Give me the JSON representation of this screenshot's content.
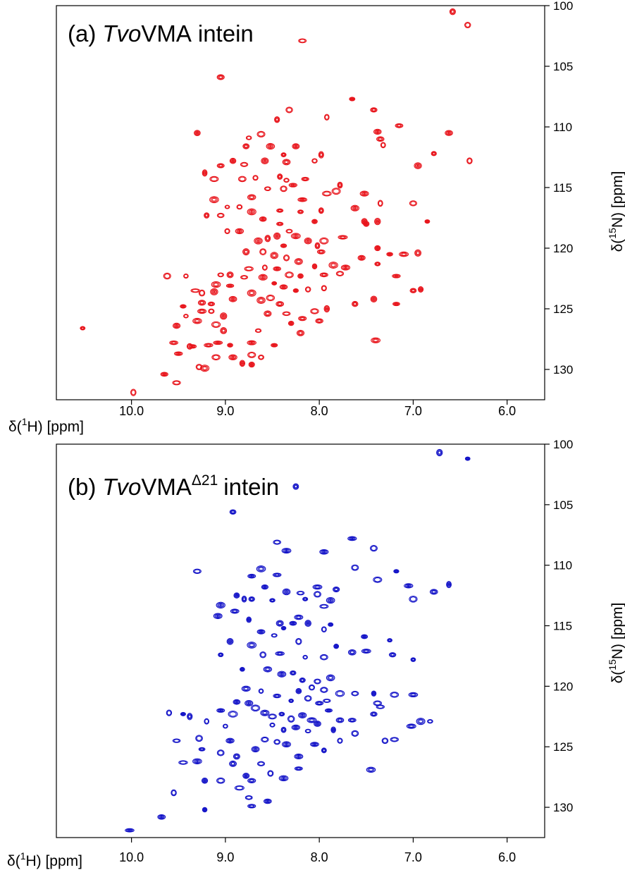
{
  "panels": [
    {
      "panel_letter": "(a)",
      "title_italic": "Tvo",
      "title_main": "VMA",
      "title_superscript": "",
      "title_suffix": "intein",
      "color": "#e8141b"
    },
    {
      "panel_letter": "(b)",
      "title_italic": "Tvo",
      "title_main": "VMA",
      "title_superscript": "Δ21",
      "title_suffix": "intein",
      "color": "#1414c8"
    }
  ],
  "x_axis_label": {
    "prefix": "δ(",
    "sup": "1",
    "rest": "H) [ppm]"
  },
  "y_axis_label": {
    "prefix": "δ(",
    "sup": "15",
    "rest": "N) [ppm]"
  },
  "chart_data": [
    {
      "type": "scatter",
      "subtype": "2D NMR HSQC contour spectrum",
      "x_axis": {
        "xlim": [
          10.8,
          5.6
        ],
        "reversed": true,
        "ticks": [
          "10.0",
          "9.0",
          "8.0",
          "7.0",
          "6.0"
        ],
        "tick_values": [
          10.0,
          9.0,
          8.0,
          7.0,
          6.0
        ]
      },
      "y_axis": {
        "ylim": [
          100,
          132.5
        ],
        "reversed": true,
        "position": "right",
        "ticks": [
          "100",
          "105",
          "110",
          "115",
          "120",
          "125",
          "130"
        ],
        "tick_values": [
          100,
          105,
          110,
          115,
          120,
          125,
          130
        ]
      },
      "grid": false,
      "peaks": [
        [
          6.58,
          100.5
        ],
        [
          6.42,
          101.6
        ],
        [
          8.18,
          102.9
        ],
        [
          9.05,
          105.9
        ],
        [
          7.65,
          107.7
        ],
        [
          7.42,
          108.6
        ],
        [
          8.32,
          108.6
        ],
        [
          8.45,
          109.4
        ],
        [
          7.92,
          109.2
        ],
        [
          7.15,
          109.9
        ],
        [
          9.3,
          110.5
        ],
        [
          8.62,
          110.6
        ],
        [
          8.75,
          110.9
        ],
        [
          7.32,
          111.5
        ],
        [
          6.78,
          112.2
        ],
        [
          6.4,
          112.8
        ],
        [
          8.78,
          111.6
        ],
        [
          8.52,
          111.6
        ],
        [
          8.25,
          111.6
        ],
        [
          8.38,
          112.3
        ],
        [
          8.05,
          112.8
        ],
        [
          7.98,
          112.3
        ],
        [
          8.35,
          112.9
        ],
        [
          9.05,
          113.2
        ],
        [
          8.92,
          112.8
        ],
        [
          8.58,
          112.8
        ],
        [
          9.22,
          113.8
        ],
        [
          9.12,
          114.3
        ],
        [
          8.82,
          114.3
        ],
        [
          8.68,
          114.2
        ],
        [
          8.42,
          114.1
        ],
        [
          8.35,
          114.4
        ],
        [
          8.28,
          114.8
        ],
        [
          7.78,
          114.8
        ],
        [
          8.15,
          114.3
        ],
        [
          7.92,
          115.5
        ],
        [
          7.82,
          115.3
        ],
        [
          7.52,
          115.5
        ],
        [
          8.55,
          115.1
        ],
        [
          8.38,
          115.1
        ],
        [
          7.62,
          116.7
        ],
        [
          7.5,
          118.0
        ],
        [
          8.72,
          115.8
        ],
        [
          8.85,
          116.6
        ],
        [
          8.98,
          116.6
        ],
        [
          9.12,
          116.0
        ],
        [
          9.2,
          117.3
        ],
        [
          9.05,
          117.3
        ],
        [
          8.72,
          117.0
        ],
        [
          8.6,
          117.6
        ],
        [
          8.42,
          116.9
        ],
        [
          8.18,
          116.0
        ],
        [
          8.2,
          117.0
        ],
        [
          7.98,
          116.9
        ],
        [
          7.35,
          116.3
        ],
        [
          7.0,
          116.3
        ],
        [
          6.85,
          117.8
        ],
        [
          7.38,
          117.8
        ],
        [
          7.52,
          117.8
        ],
        [
          8.05,
          117.8
        ],
        [
          8.98,
          118.6
        ],
        [
          8.85,
          118.6
        ],
        [
          8.42,
          118.0
        ],
        [
          8.32,
          118.6
        ],
        [
          8.45,
          119.0
        ],
        [
          8.55,
          119.2
        ],
        [
          8.65,
          119.4
        ],
        [
          8.38,
          119.8
        ],
        [
          8.25,
          119.0
        ],
        [
          8.12,
          119.4
        ],
        [
          7.95,
          119.4
        ],
        [
          7.75,
          119.1
        ],
        [
          8.02,
          119.8
        ],
        [
          8.6,
          120.3
        ],
        [
          8.48,
          120.6
        ],
        [
          8.35,
          120.8
        ],
        [
          8.22,
          121.1
        ],
        [
          8.58,
          121.6
        ],
        [
          8.45,
          121.7
        ],
        [
          8.32,
          122.2
        ],
        [
          8.2,
          122.3
        ],
        [
          8.6,
          122.4
        ],
        [
          8.48,
          122.9
        ],
        [
          8.38,
          123.2
        ],
        [
          8.25,
          123.5
        ],
        [
          8.12,
          123.4
        ],
        [
          8.05,
          121.5
        ],
        [
          7.98,
          120.3
        ],
        [
          7.95,
          122.2
        ],
        [
          7.95,
          123.3
        ],
        [
          7.85,
          121.4
        ],
        [
          7.72,
          121.6
        ],
        [
          7.55,
          120.8
        ],
        [
          7.38,
          120.0
        ],
        [
          7.38,
          121.3
        ],
        [
          7.25,
          120.5
        ],
        [
          7.1,
          120.5
        ],
        [
          6.95,
          120.4
        ],
        [
          7.18,
          122.3
        ],
        [
          7.0,
          123.5
        ],
        [
          6.92,
          123.4
        ],
        [
          7.18,
          124.6
        ],
        [
          7.42,
          124.2
        ],
        [
          7.62,
          124.6
        ],
        [
          7.4,
          127.6
        ],
        [
          7.78,
          122.1
        ],
        [
          8.78,
          120.3
        ],
        [
          8.75,
          121.7
        ],
        [
          8.95,
          122.2
        ],
        [
          9.05,
          122.2
        ],
        [
          9.1,
          123.0
        ],
        [
          8.95,
          123.1
        ],
        [
          8.92,
          124.2
        ],
        [
          8.8,
          122.4
        ],
        [
          8.72,
          123.7
        ],
        [
          8.62,
          124.3
        ],
        [
          8.52,
          124.1
        ],
        [
          8.42,
          124.6
        ],
        [
          8.35,
          125.4
        ],
        [
          8.18,
          125.8
        ],
        [
          8.05,
          125.2
        ],
        [
          7.92,
          125.0
        ],
        [
          8.3,
          126.2
        ],
        [
          8.2,
          127.0
        ],
        [
          8.0,
          126.0
        ],
        [
          8.55,
          125.4
        ],
        [
          8.65,
          126.8
        ],
        [
          8.48,
          128.0
        ],
        [
          8.72,
          127.8
        ],
        [
          8.72,
          128.8
        ],
        [
          8.72,
          129.6
        ],
        [
          8.62,
          129.0
        ],
        [
          8.82,
          129.5
        ],
        [
          8.92,
          129.0
        ],
        [
          8.95,
          128.0
        ],
        [
          9.08,
          127.8
        ],
        [
          9.18,
          128.0
        ],
        [
          9.38,
          128.1
        ],
        [
          9.02,
          126.8
        ],
        [
          9.1,
          126.3
        ],
        [
          9.02,
          125.6
        ],
        [
          9.15,
          125.2
        ],
        [
          9.25,
          125.2
        ],
        [
          9.3,
          126.0
        ],
        [
          9.15,
          124.6
        ],
        [
          9.25,
          124.5
        ],
        [
          9.45,
          124.8
        ],
        [
          9.25,
          123.7
        ],
        [
          9.12,
          123.6
        ],
        [
          9.32,
          123.5
        ],
        [
          9.42,
          122.3
        ],
        [
          9.62,
          122.3
        ],
        [
          9.42,
          125.6
        ],
        [
          9.52,
          126.4
        ],
        [
          9.55,
          127.8
        ],
        [
          9.35,
          128.1
        ],
        [
          9.5,
          128.7
        ],
        [
          9.28,
          129.8
        ],
        [
          9.22,
          129.9
        ],
        [
          9.1,
          129.0
        ],
        [
          9.65,
          130.4
        ],
        [
          9.52,
          131.1
        ],
        [
          9.98,
          131.9
        ],
        [
          10.52,
          126.6
        ],
        [
          6.62,
          110.5
        ],
        [
          6.95,
          113.2
        ],
        [
          7.38,
          110.4
        ],
        [
          7.35,
          111.0
        ],
        [
          8.8,
          113.1
        ]
      ]
    },
    {
      "type": "scatter",
      "subtype": "2D NMR HSQC contour spectrum",
      "x_axis": {
        "xlim": [
          10.8,
          5.6
        ],
        "reversed": true,
        "ticks": [
          "10.0",
          "9.0",
          "8.0",
          "7.0",
          "6.0"
        ],
        "tick_values": [
          10.0,
          9.0,
          8.0,
          7.0,
          6.0
        ]
      },
      "y_axis": {
        "ylim": [
          100,
          132.5
        ],
        "reversed": true,
        "position": "right",
        "ticks": [
          "100",
          "105",
          "110",
          "115",
          "120",
          "125",
          "130"
        ],
        "tick_values": [
          100,
          105,
          110,
          115,
          120,
          125,
          130
        ]
      },
      "grid": false,
      "peaks": [
        [
          6.72,
          100.7
        ],
        [
          6.42,
          101.2
        ],
        [
          8.25,
          103.5
        ],
        [
          8.92,
          105.6
        ],
        [
          7.65,
          107.8
        ],
        [
          7.42,
          108.6
        ],
        [
          8.45,
          108.1
        ],
        [
          8.35,
          108.8
        ],
        [
          7.95,
          108.9
        ],
        [
          7.18,
          110.5
        ],
        [
          9.3,
          110.5
        ],
        [
          8.62,
          110.3
        ],
        [
          8.72,
          110.9
        ],
        [
          7.38,
          111.2
        ],
        [
          6.78,
          112.2
        ],
        [
          6.62,
          111.6
        ],
        [
          8.58,
          111.8
        ],
        [
          8.35,
          112.2
        ],
        [
          8.2,
          112.3
        ],
        [
          8.15,
          112.8
        ],
        [
          8.02,
          112.4
        ],
        [
          7.88,
          112.9
        ],
        [
          8.8,
          112.8
        ],
        [
          8.72,
          112.8
        ],
        [
          9.05,
          113.3
        ],
        [
          7.0,
          112.8
        ],
        [
          9.08,
          114.2
        ],
        [
          8.9,
          113.8
        ],
        [
          8.75,
          114.5
        ],
        [
          8.42,
          114.8
        ],
        [
          8.38,
          115.2
        ],
        [
          8.28,
          114.8
        ],
        [
          8.22,
          114.3
        ],
        [
          8.12,
          114.8
        ],
        [
          7.95,
          115.3
        ],
        [
          7.88,
          114.9
        ],
        [
          7.52,
          115.9
        ],
        [
          8.62,
          115.5
        ],
        [
          8.48,
          115.8
        ],
        [
          9.05,
          117.4
        ],
        [
          8.95,
          116.3
        ],
        [
          8.72,
          116.6
        ],
        [
          8.6,
          117.4
        ],
        [
          8.42,
          117.3
        ],
        [
          8.22,
          116.3
        ],
        [
          8.15,
          117.6
        ],
        [
          7.95,
          117.6
        ],
        [
          7.65,
          117.2
        ],
        [
          7.5,
          117.1
        ],
        [
          7.25,
          116.2
        ],
        [
          7.22,
          117.4
        ],
        [
          7.0,
          117.8
        ],
        [
          8.82,
          118.6
        ],
        [
          8.55,
          118.6
        ],
        [
          8.4,
          119.0
        ],
        [
          8.28,
          118.9
        ],
        [
          8.18,
          119.5
        ],
        [
          8.02,
          119.6
        ],
        [
          7.88,
          119.3
        ],
        [
          7.95,
          120.3
        ],
        [
          8.78,
          120.2
        ],
        [
          8.62,
          120.4
        ],
        [
          8.45,
          120.8
        ],
        [
          8.3,
          121.2
        ],
        [
          8.22,
          120.4
        ],
        [
          8.12,
          121.0
        ],
        [
          8.0,
          121.4
        ],
        [
          7.9,
          122.0
        ],
        [
          7.78,
          120.6
        ],
        [
          7.62,
          120.6
        ],
        [
          7.42,
          120.6
        ],
        [
          7.38,
          121.4
        ],
        [
          7.2,
          120.7
        ],
        [
          7.0,
          120.7
        ],
        [
          8.88,
          121.3
        ],
        [
          8.75,
          121.4
        ],
        [
          8.68,
          121.8
        ],
        [
          8.58,
          122.2
        ],
        [
          8.5,
          122.5
        ],
        [
          8.4,
          122.3
        ],
        [
          8.3,
          122.7
        ],
        [
          8.18,
          122.4
        ],
        [
          8.08,
          122.8
        ],
        [
          8.5,
          123.2
        ],
        [
          8.38,
          123.6
        ],
        [
          8.25,
          123.4
        ],
        [
          8.12,
          123.7
        ],
        [
          8.02,
          123.1
        ],
        [
          7.85,
          123.6
        ],
        [
          7.78,
          122.8
        ],
        [
          7.65,
          122.8
        ],
        [
          7.42,
          122.3
        ],
        [
          7.02,
          123.3
        ],
        [
          6.92,
          122.9
        ],
        [
          6.82,
          122.9
        ],
        [
          7.2,
          124.4
        ],
        [
          7.45,
          126.9
        ],
        [
          7.62,
          123.9
        ],
        [
          7.78,
          124.5
        ],
        [
          7.95,
          125.3
        ],
        [
          8.05,
          124.8
        ],
        [
          8.22,
          125.8
        ],
        [
          8.35,
          124.8
        ],
        [
          8.45,
          124.6
        ],
        [
          8.58,
          124.4
        ],
        [
          8.68,
          125.2
        ],
        [
          8.62,
          126.4
        ],
        [
          8.52,
          127.2
        ],
        [
          8.38,
          127.6
        ],
        [
          8.22,
          126.8
        ],
        [
          8.92,
          122.3
        ],
        [
          9.0,
          123.3
        ],
        [
          9.05,
          122.0
        ],
        [
          8.95,
          124.5
        ],
        [
          8.88,
          125.8
        ],
        [
          9.05,
          125.5
        ],
        [
          8.92,
          126.4
        ],
        [
          8.78,
          127.4
        ],
        [
          8.72,
          127.8
        ],
        [
          8.85,
          128.4
        ],
        [
          8.75,
          129.2
        ],
        [
          8.55,
          129.5
        ],
        [
          8.72,
          129.9
        ],
        [
          9.05,
          127.8
        ],
        [
          9.22,
          127.8
        ],
        [
          9.3,
          126.2
        ],
        [
          9.45,
          126.3
        ],
        [
          9.25,
          125.2
        ],
        [
          9.28,
          124.3
        ],
        [
          9.2,
          122.9
        ],
        [
          9.45,
          122.3
        ],
        [
          9.6,
          122.2
        ],
        [
          9.38,
          122.5
        ],
        [
          9.52,
          124.5
        ],
        [
          9.55,
          128.8
        ],
        [
          9.22,
          130.2
        ],
        [
          9.68,
          130.8
        ],
        [
          10.02,
          131.9
        ],
        [
          8.5,
          112.9
        ],
        [
          7.95,
          113.4
        ],
        [
          7.82,
          116.7
        ],
        [
          7.92,
          121.2
        ],
        [
          8.08,
          120.1
        ],
        [
          7.35,
          121.7
        ],
        [
          7.3,
          124.5
        ],
        [
          7.05,
          111.7
        ],
        [
          7.62,
          110.2
        ],
        [
          7.82,
          112.0
        ],
        [
          8.02,
          111.8
        ],
        [
          8.45,
          110.8
        ],
        [
          8.88,
          112.5
        ]
      ]
    }
  ]
}
